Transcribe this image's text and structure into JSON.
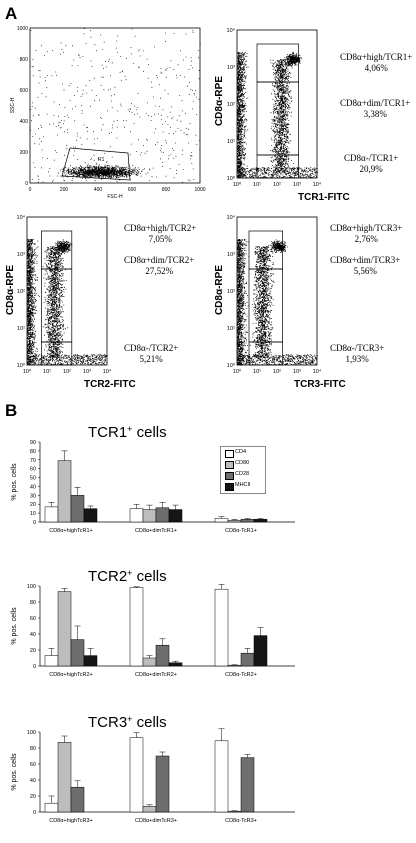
{
  "panelA": {
    "letter": "A",
    "fsc": {
      "ylabel": "SSC-H",
      "xlabel": "FSC-H",
      "gate_name": "R1",
      "x_ticks": [
        "0",
        "200",
        "400",
        "600",
        "800",
        "1000"
      ],
      "y_ticks": [
        "0",
        "200",
        "400",
        "600",
        "800",
        "1000"
      ]
    },
    "plots": [
      {
        "ylabel": "CD8α-RPE",
        "xlabel": "TCR1-FITC",
        "gates": [
          {
            "label": "CD8α+high/TCR1+",
            "pct": "4,06%"
          },
          {
            "label": "CD8α+dim/TCR1+",
            "pct": "3,38%"
          },
          {
            "label": "CD8α-/TCR1+",
            "pct": "20,9%"
          }
        ]
      },
      {
        "ylabel": "CD8α-RPE",
        "xlabel": "TCR2-FITC",
        "gates": [
          {
            "label": "CD8α+high/TCR2+",
            "pct": "7,05%"
          },
          {
            "label": "CD8α+dim/TCR2+",
            "pct": "27,52%"
          },
          {
            "label": "CD8α-/TCR2+",
            "pct": "5,21%"
          }
        ]
      },
      {
        "ylabel": "CD8α-RPE",
        "xlabel": "TCR3-FITC",
        "gates": [
          {
            "label": "CD8α+high/TCR3+",
            "pct": "2,76%"
          },
          {
            "label": "CD8α+dim/TCR3+",
            "pct": "5,56%"
          },
          {
            "label": "CD8α-/TCR3+",
            "pct": "1,93%"
          }
        ]
      }
    ],
    "log_ticks": [
      "10⁰",
      "10¹",
      "10²",
      "10³",
      "10⁴"
    ]
  },
  "panelB": {
    "letter": "B",
    "legend": [
      "CD4",
      "CD80",
      "CD28",
      "MHCII"
    ],
    "colors": {
      "CD4": "#ffffff",
      "CD80": "#bdbdbd",
      "CD28": "#6e6e6e",
      "MHCII": "#151515"
    },
    "chart_data": [
      {
        "type": "bar",
        "title": "TCR1+ cells",
        "ylabel": "% pos. cells",
        "ylim": [
          0,
          90
        ],
        "yticks": [
          0,
          10,
          20,
          30,
          40,
          50,
          60,
          70,
          80,
          90
        ],
        "categories": [
          "CD8α+highTcR1+",
          "CD8α+dimTcR1+",
          "CD8α-TcR1+"
        ],
        "series": [
          {
            "name": "CD4",
            "values": [
              17,
              15,
              4
            ],
            "errors": [
              5,
              5,
              2
            ]
          },
          {
            "name": "CD80",
            "values": [
              69,
              14,
              2
            ],
            "errors": [
              11,
              5,
              1
            ]
          },
          {
            "name": "CD28",
            "values": [
              30,
              16,
              3
            ],
            "errors": [
              9,
              6,
              1
            ]
          },
          {
            "name": "MHCII",
            "values": [
              15,
              14,
              3
            ],
            "errors": [
              3,
              5,
              1
            ]
          }
        ]
      },
      {
        "type": "bar",
        "title": "TCR2+ cells",
        "ylabel": "% pos. cells",
        "ylim": [
          0,
          100
        ],
        "yticks": [
          0,
          20,
          40,
          60,
          80,
          100
        ],
        "categories": [
          "CD8α+highTcR2+",
          "CD8α+dimTcR2+",
          "CD8α-TcR2+"
        ],
        "series": [
          {
            "name": "CD4",
            "values": [
              13,
              98,
              96
            ],
            "errors": [
              9,
              1,
              6
            ]
          },
          {
            "name": "CD80",
            "values": [
              93,
              10,
              1
            ],
            "errors": [
              4,
              3,
              0.5
            ]
          },
          {
            "name": "CD28",
            "values": [
              33,
              26,
              16
            ],
            "errors": [
              17,
              8,
              6
            ]
          },
          {
            "name": "MHCII",
            "values": [
              13,
              4,
              38
            ],
            "errors": [
              9,
              2,
              10
            ]
          }
        ]
      },
      {
        "type": "bar",
        "title": "TCR3+ cells",
        "ylabel": "% pos. cells",
        "ylim": [
          0,
          100
        ],
        "yticks": [
          0,
          20,
          40,
          60,
          80,
          100
        ],
        "categories": [
          "CD8α+highTcR3+",
          "CD8α+dimTcR3+",
          "CD8α-TcR3+"
        ],
        "series": [
          {
            "name": "CD4",
            "values": [
              11,
              93,
              89
            ],
            "errors": [
              9,
              6,
              15
            ]
          },
          {
            "name": "CD80",
            "values": [
              87,
              7,
              1
            ],
            "errors": [
              8,
              2,
              0.5
            ]
          },
          {
            "name": "CD28",
            "values": [
              31,
              70,
              68
            ],
            "errors": [
              8,
              5,
              4
            ]
          },
          {
            "name": "MHCII",
            "values": [
              0,
              0,
              0
            ],
            "errors": [
              0,
              0,
              0
            ]
          }
        ]
      }
    ]
  }
}
